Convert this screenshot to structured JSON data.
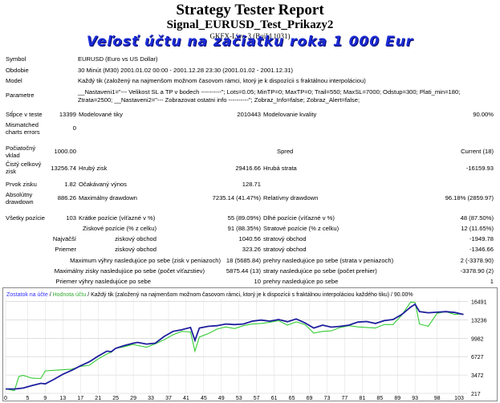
{
  "header": {
    "title": "Strategy Tester Report",
    "subtitle": "Signal_EURUSD_Test_Prikazy2",
    "server": "GKFX-Live-3 (Build 1031)",
    "overlay_text": "Veľosť účtu na začiatku roka 1 000 Eur"
  },
  "info": {
    "symbol_label": "Symbol",
    "symbol_value": "EURUSD (Euro vs US Dollar)",
    "period_label": "Obdobie",
    "period_value": "30 Minút (M30) 2001.01.02 00:00 - 2001.12.28 23:30 (2001.01.02 - 2001.12.31)",
    "model_label": "Model",
    "model_value": "Každý tik (založený na najmenšom možnom časovom rámci, ktorý je k dispozícii s fraktálnou interpoláciou)",
    "params_label": "Parametre",
    "params_line1": "__Nastaveni1=\"--- Velikost SL a TP v bodech ----------\"; Lots=0.05; MinTP=0; MaxTP=0; Trail=550; MaxSL=7000; Odstup=300; Plati_min=180;",
    "params_line2": "Ztrata=2500; __Nastaveni2=\"--- Zobrazovat ostatni info ----------\"; Zobraz_Info=false; Zobraz_Alert=false;"
  },
  "stats": {
    "bars_label": "Stĺpce v teste",
    "bars_value": "13399",
    "ticks_label": "Modelované tiky",
    "ticks_value": "2010443",
    "quality_label": "Modelovanie kvality",
    "quality_value": "90.00%",
    "mismatch_label_1": "Mismatched",
    "mismatch_label_2": "charts errors",
    "mismatch_value": "0",
    "deposit_label_1": "Počiatočný",
    "deposit_label_2": "vklad",
    "deposit_value": "1000.00",
    "spread_label": "Spred",
    "spread_value": "Current (18)",
    "netprofit_label_1": "Čistý celkový",
    "netprofit_label_2": "zisk",
    "netprofit_value": "13256.74",
    "grossprofit_label": "Hrubý zisk",
    "grossprofit_value": "29416.66",
    "grossloss_label": "Hrubá strata",
    "grossloss_value": "-16159.93",
    "pf_label": "Prvok zisku",
    "pf_value": "1.82",
    "payoff_label": "Očakávaný výnos",
    "payoff_value": "128.71",
    "absdd_label_1": "Absolútny",
    "absdd_label_2": "drawdown",
    "absdd_value": "886.26",
    "maxdd_label": "Maximálny drawdown",
    "maxdd_value": "7235.14 (41.47%)",
    "reldd_label": "Relatívny drawdown",
    "reldd_value": "96.18% (2859.97)"
  },
  "trades": {
    "total_label": "Všetky pozície",
    "total_value": "103",
    "short_label": "Krátke pozície (víťazné v %)",
    "short_value": "55 (89.09%)",
    "long_label": "Dlhé pozície (víťazné v %)",
    "long_value": "48 (87.50%)",
    "profit_trades_label": "Ziskové pozície (% z celku)",
    "profit_trades_value": "91 (88.35%)",
    "loss_trades_label": "Stratové pozície (% z celku)",
    "loss_trades_value": "12 (11.65%)",
    "largest_label": "Najväčší",
    "largest_profit_label": "ziskový obchod",
    "largest_profit_value": "1040.56",
    "largest_loss_label": "stratový obchod",
    "largest_loss_value": "-1949.78",
    "average_label": "Priemer",
    "average_profit_label": "ziskový obchod",
    "average_profit_value": "323.26",
    "average_loss_label": "stratový obchod",
    "average_loss_value": "-1346.66",
    "max_consec_wins_label": "Maximum výhry nasledujúce po sebe (zisk v peniazoch)",
    "max_consec_wins_value": "18 (5685.84)",
    "max_consec_losses_label": "prehry nasledujúce po sebe (strata v peniazoch)",
    "max_consec_losses_value": "2 (-3378.90)",
    "maximal_wins_label": "Maximálny zisky nasledujúce po sebe (počet víťazstiev)",
    "maximal_wins_value": "5875.44 (13)",
    "maximal_losses_label": "straty nasledujúce po sebe (počet prehier)",
    "maximal_losses_value": "-3378.90 (2)",
    "avg_consec_wins_label": "Priemer výhry nasledujúce po sebe",
    "avg_consec_wins_value": "10",
    "avg_consec_losses_label": "prehry nasledujúce po sebe",
    "avg_consec_losses_value": "1"
  },
  "chart_legend": {
    "balance": "Zostatok na účte",
    "sep1": " / ",
    "equity": "Hodnota účtu",
    "rest": " / Každý tik (založený na najmenšom možnom časovom rámci, ktorý je k dispozícii s fraktálnou interpoláciou každého tiku) / 90.00%"
  },
  "colors": {
    "balance": "#1f1f9e",
    "equity": "#33cc33",
    "legend_balance": "#3333ff",
    "legend_equity": "#33aa33",
    "overlay": "#1a2bd6"
  },
  "chart_data": {
    "type": "line",
    "ylim": [
      217,
      17000
    ],
    "xlim": [
      0,
      105
    ],
    "y_ticks": [
      217,
      3472,
      6727,
      9982,
      13236,
      16491
    ],
    "x_ticks": [
      0,
      5,
      9,
      13,
      17,
      21,
      25,
      29,
      33,
      37,
      41,
      45,
      49,
      53,
      57,
      61,
      65,
      69,
      73,
      77,
      81,
      85,
      89,
      93,
      98,
      103
    ],
    "series": [
      {
        "name": "Zostatok na účte",
        "points": [
          [
            0,
            1000
          ],
          [
            2,
            980
          ],
          [
            4,
            1150
          ],
          [
            6,
            1600
          ],
          [
            8,
            2000
          ],
          [
            9,
            1900
          ],
          [
            11,
            2700
          ],
          [
            13,
            3600
          ],
          [
            15,
            4300
          ],
          [
            17,
            5100
          ],
          [
            19,
            5800
          ],
          [
            21,
            6800
          ],
          [
            23,
            7700
          ],
          [
            24,
            7600
          ],
          [
            25,
            8200
          ],
          [
            27,
            8700
          ],
          [
            29,
            9100
          ],
          [
            30,
            9250
          ],
          [
            32,
            8950
          ],
          [
            34,
            9100
          ],
          [
            36,
            10300
          ],
          [
            38,
            11200
          ],
          [
            40,
            11500
          ],
          [
            42,
            11900
          ],
          [
            43,
            9600
          ],
          [
            44,
            11800
          ],
          [
            46,
            12100
          ],
          [
            48,
            12200
          ],
          [
            50,
            12500
          ],
          [
            52,
            12400
          ],
          [
            54,
            12500
          ],
          [
            56,
            13000
          ],
          [
            58,
            13200
          ],
          [
            60,
            13000
          ],
          [
            62,
            13300
          ],
          [
            64,
            12900
          ],
          [
            66,
            13400
          ],
          [
            68,
            12700
          ],
          [
            70,
            11800
          ],
          [
            72,
            12300
          ],
          [
            74,
            11950
          ],
          [
            76,
            12100
          ],
          [
            78,
            12300
          ],
          [
            80,
            12850
          ],
          [
            82,
            12950
          ],
          [
            84,
            12600
          ],
          [
            86,
            13100
          ],
          [
            88,
            13300
          ],
          [
            90,
            14200
          ],
          [
            92,
            15500
          ],
          [
            93,
            16000
          ],
          [
            94,
            14700
          ],
          [
            96,
            14500
          ],
          [
            98,
            14600
          ],
          [
            100,
            14700
          ],
          [
            102,
            14550
          ],
          [
            104,
            14200
          ]
        ]
      },
      {
        "name": "Hodnota účtu",
        "points": [
          [
            0,
            1000
          ],
          [
            2,
            700
          ],
          [
            3,
            3200
          ],
          [
            4,
            3400
          ],
          [
            6,
            2900
          ],
          [
            8,
            2850
          ],
          [
            9,
            4200
          ],
          [
            11,
            4300
          ],
          [
            13,
            4400
          ],
          [
            15,
            4500
          ],
          [
            17,
            5000
          ],
          [
            19,
            5200
          ],
          [
            21,
            6300
          ],
          [
            23,
            7200
          ],
          [
            24,
            7500
          ],
          [
            25,
            8200
          ],
          [
            27,
            8500
          ],
          [
            29,
            8900
          ],
          [
            30,
            8700
          ],
          [
            32,
            8400
          ],
          [
            34,
            9000
          ],
          [
            36,
            9700
          ],
          [
            38,
            10600
          ],
          [
            40,
            11200
          ],
          [
            42,
            11100
          ],
          [
            43,
            7700
          ],
          [
            44,
            10200
          ],
          [
            46,
            10800
          ],
          [
            48,
            11600
          ],
          [
            50,
            12000
          ],
          [
            52,
            11700
          ],
          [
            54,
            12200
          ],
          [
            56,
            12500
          ],
          [
            58,
            12600
          ],
          [
            60,
            12800
          ],
          [
            62,
            13100
          ],
          [
            64,
            12300
          ],
          [
            66,
            12900
          ],
          [
            68,
            12400
          ],
          [
            70,
            10900
          ],
          [
            72,
            11200
          ],
          [
            74,
            11300
          ],
          [
            76,
            11900
          ],
          [
            78,
            12200
          ],
          [
            80,
            12000
          ],
          [
            82,
            11900
          ],
          [
            84,
            11800
          ],
          [
            86,
            12400
          ],
          [
            88,
            12400
          ],
          [
            90,
            14100
          ],
          [
            92,
            16400
          ],
          [
            93,
            16300
          ],
          [
            94,
            12500
          ],
          [
            96,
            12100
          ],
          [
            98,
            14400
          ],
          [
            100,
            14700
          ],
          [
            102,
            14200
          ],
          [
            104,
            14300
          ]
        ]
      }
    ]
  }
}
